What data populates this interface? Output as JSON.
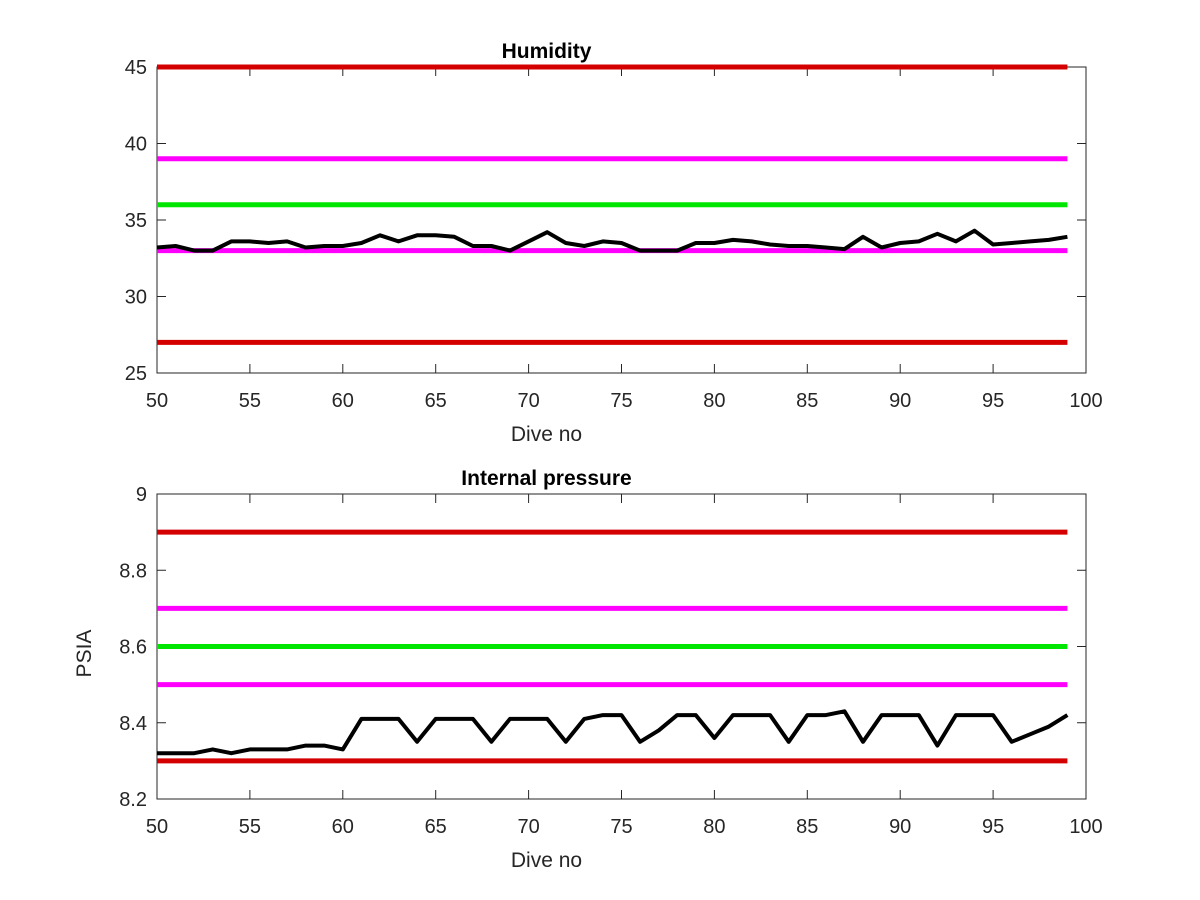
{
  "chart_data": [
    {
      "type": "line",
      "title": "Humidity",
      "xlabel": "Dive no",
      "ylabel": "",
      "xlim": [
        50,
        100
      ],
      "ylim": [
        25,
        45
      ],
      "xticks": [
        50,
        55,
        60,
        65,
        70,
        75,
        80,
        85,
        90,
        95,
        100
      ],
      "yticks": [
        25,
        30,
        35,
        40,
        45
      ],
      "grid": false,
      "threshold_lines": [
        {
          "y": 45,
          "color": "#d40000",
          "x_range": [
            50,
            99
          ]
        },
        {
          "y": 39,
          "color": "#ff00ff",
          "x_range": [
            50,
            99
          ]
        },
        {
          "y": 36,
          "color": "#00e600",
          "x_range": [
            50,
            99
          ]
        },
        {
          "y": 33,
          "color": "#ff00ff",
          "x_range": [
            50,
            99
          ]
        },
        {
          "y": 27,
          "color": "#d40000",
          "x_range": [
            50,
            99
          ]
        }
      ],
      "series": [
        {
          "color": "#000000",
          "x": [
            50,
            51,
            52,
            53,
            54,
            55,
            56,
            57,
            58,
            59,
            60,
            61,
            62,
            63,
            64,
            65,
            66,
            67,
            68,
            69,
            70,
            71,
            72,
            73,
            74,
            75,
            76,
            77,
            78,
            79,
            80,
            81,
            82,
            83,
            84,
            85,
            86,
            87,
            88,
            89,
            90,
            91,
            92,
            93,
            94,
            95,
            96,
            97,
            98,
            99
          ],
          "y": [
            33.2,
            33.3,
            33.0,
            33.0,
            33.6,
            33.6,
            33.5,
            33.6,
            33.2,
            33.3,
            33.3,
            33.5,
            34.0,
            33.6,
            34.0,
            34.0,
            33.9,
            33.3,
            33.3,
            33.0,
            33.6,
            34.2,
            33.5,
            33.3,
            33.6,
            33.5,
            33.0,
            33.0,
            33.0,
            33.5,
            33.5,
            33.7,
            33.6,
            33.4,
            33.3,
            33.3,
            33.2,
            33.1,
            33.9,
            33.2,
            33.5,
            33.6,
            34.1,
            33.6,
            34.3,
            33.4,
            33.5,
            33.6,
            33.7,
            33.9
          ]
        }
      ]
    },
    {
      "type": "line",
      "title": "Internal pressure",
      "xlabel": "Dive no",
      "ylabel": "PSIA",
      "xlim": [
        50,
        100
      ],
      "ylim": [
        8.2,
        9
      ],
      "xticks": [
        50,
        55,
        60,
        65,
        70,
        75,
        80,
        85,
        90,
        95,
        100
      ],
      "yticks": [
        8.2,
        8.4,
        8.6,
        8.8,
        9
      ],
      "ytick_labels": [
        "8.2",
        "8.4",
        "8.6",
        "8.8",
        "9"
      ],
      "grid": false,
      "threshold_lines": [
        {
          "y": 8.9,
          "color": "#d40000",
          "x_range": [
            50,
            99
          ]
        },
        {
          "y": 8.7,
          "color": "#ff00ff",
          "x_range": [
            50,
            99
          ]
        },
        {
          "y": 8.6,
          "color": "#00e600",
          "x_range": [
            50,
            99
          ]
        },
        {
          "y": 8.5,
          "color": "#ff00ff",
          "x_range": [
            50,
            99
          ]
        },
        {
          "y": 8.3,
          "color": "#d40000",
          "x_range": [
            50,
            99
          ]
        }
      ],
      "series": [
        {
          "color": "#000000",
          "x": [
            50,
            51,
            52,
            53,
            54,
            55,
            56,
            57,
            58,
            59,
            60,
            61,
            62,
            63,
            64,
            65,
            66,
            67,
            68,
            69,
            70,
            71,
            72,
            73,
            74,
            75,
            76,
            77,
            78,
            79,
            80,
            81,
            82,
            83,
            84,
            85,
            86,
            87,
            88,
            89,
            90,
            91,
            92,
            93,
            94,
            95,
            96,
            97,
            98,
            99
          ],
          "y": [
            8.32,
            8.32,
            8.32,
            8.33,
            8.32,
            8.33,
            8.33,
            8.33,
            8.34,
            8.34,
            8.33,
            8.41,
            8.41,
            8.41,
            8.35,
            8.41,
            8.41,
            8.41,
            8.35,
            8.41,
            8.41,
            8.41,
            8.35,
            8.41,
            8.42,
            8.42,
            8.35,
            8.38,
            8.42,
            8.42,
            8.36,
            8.42,
            8.42,
            8.42,
            8.35,
            8.42,
            8.42,
            8.43,
            8.35,
            8.42,
            8.42,
            8.42,
            8.34,
            8.42,
            8.42,
            8.42,
            8.35,
            8.37,
            8.39,
            8.42
          ]
        }
      ]
    }
  ]
}
